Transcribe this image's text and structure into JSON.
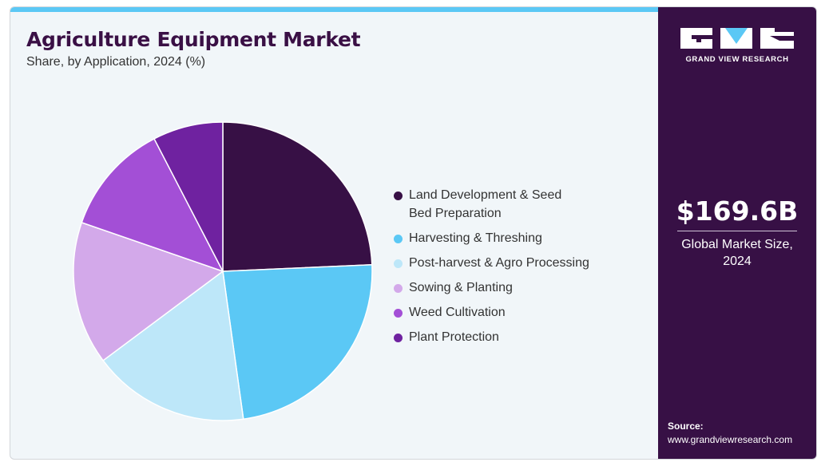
{
  "header": {
    "title": "Agriculture Equipment Market",
    "subtitle": "Share, by Application, 2024 (%)"
  },
  "chart_data": {
    "type": "pie",
    "title": "Agriculture Equipment Market",
    "subtitle": "Share, by Application, 2024 (%)",
    "legend_position": "right",
    "start_angle_deg": 0,
    "direction": "clockwise",
    "slices": [
      {
        "label": "Land Development & Seed Bed Preparation",
        "value": 24.3,
        "color": "#371045"
      },
      {
        "label": "Harvesting & Threshing",
        "value": 23.5,
        "color": "#5bc8f5"
      },
      {
        "label": "Post-harvest & Agro Processing",
        "value": 17.0,
        "color": "#bde7f9"
      },
      {
        "label": "Sowing & Planting",
        "value": 15.5,
        "color": "#d3a9ea"
      },
      {
        "label": "Weed Cultivation",
        "value": 12.1,
        "color": "#a34fd6"
      },
      {
        "label": "Plant Protection",
        "value": 7.6,
        "color": "#6f22a0"
      }
    ]
  },
  "legend": {
    "items": [
      {
        "label_line1": "Land Development & Seed",
        "label_line2": "Bed Preparation",
        "color": "#371045"
      },
      {
        "label_line1": "Harvesting & Threshing",
        "label_line2": "",
        "color": "#5bc8f5"
      },
      {
        "label_line1": "Post-harvest & Agro Processing",
        "label_line2": "",
        "color": "#bde7f9"
      },
      {
        "label_line1": "Sowing & Planting",
        "label_line2": "",
        "color": "#d3a9ea"
      },
      {
        "label_line1": "Weed Cultivation",
        "label_line2": "",
        "color": "#a34fd6"
      },
      {
        "label_line1": "Plant Protection",
        "label_line2": "",
        "color": "#6f22a0"
      }
    ]
  },
  "sidebar": {
    "logo_text": "GRAND VIEW RESEARCH",
    "market_value": "$169.6B",
    "market_label": "Global Market Size, 2024",
    "source_title": "Source:",
    "source_url": "www.grandviewresearch.com",
    "background_color": "#371045"
  },
  "colors": {
    "accent_bar": "#5bc8f5",
    "title": "#3a1045",
    "panel_bg": "#f1f6f9"
  }
}
